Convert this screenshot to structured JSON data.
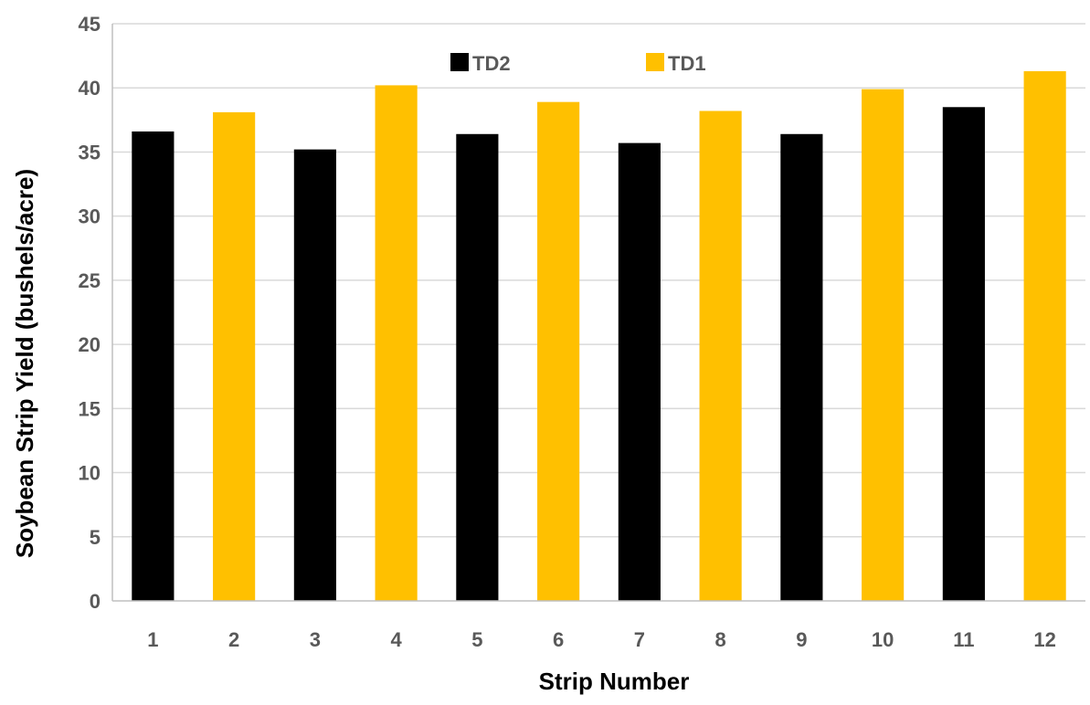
{
  "chart_data": {
    "type": "bar",
    "title": "",
    "xlabel": "Strip Number",
    "ylabel": "Soybean Strip Yield (bushels/acre)",
    "ylim": [
      0,
      45
    ],
    "yticks": [
      0,
      5,
      10,
      15,
      20,
      25,
      30,
      35,
      40,
      45
    ],
    "grid": true,
    "legend_position": "top-center",
    "categories": [
      "1",
      "2",
      "3",
      "4",
      "5",
      "6",
      "7",
      "8",
      "9",
      "10",
      "11",
      "12"
    ],
    "values": [
      36.6,
      38.1,
      35.2,
      40.2,
      36.4,
      38.9,
      35.7,
      38.2,
      36.4,
      39.9,
      38.5,
      41.3
    ],
    "bar_series": [
      "TD2",
      "TD1",
      "TD2",
      "TD1",
      "TD2",
      "TD1",
      "TD2",
      "TD1",
      "TD2",
      "TD1",
      "TD2",
      "TD1"
    ],
    "series": [
      {
        "name": "TD2",
        "color": "#000000"
      },
      {
        "name": "TD1",
        "color": "#FFC000"
      }
    ]
  }
}
